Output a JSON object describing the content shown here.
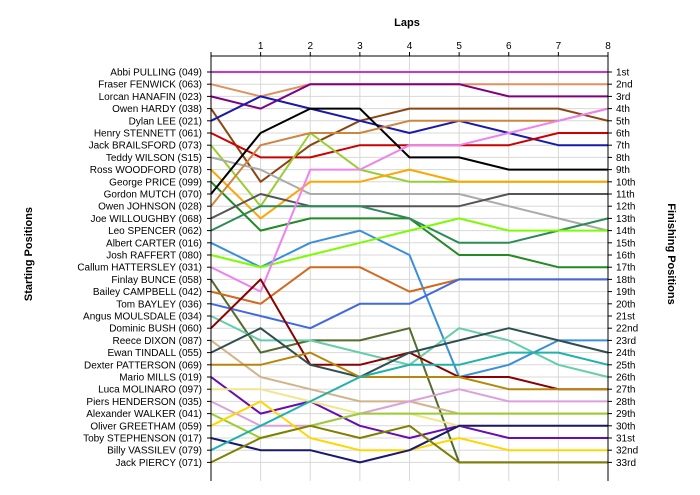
{
  "chart_data": {
    "type": "line",
    "title": "Laps",
    "ylabel_left": "Starting Positions",
    "ylabel_right": "Finishing Positions",
    "x_ticks": [
      "1",
      "2",
      "3",
      "4",
      "5",
      "6",
      "7",
      "8"
    ],
    "position_labels": [
      "1st",
      "2nd",
      "3rd",
      "4th",
      "5th",
      "6th",
      "7th",
      "8th",
      "9th",
      "10th",
      "11th",
      "12th",
      "13th",
      "14th",
      "15th",
      "16th",
      "17th",
      "18th",
      "19th",
      "20th",
      "21st",
      "22nd",
      "23rd",
      "24th",
      "25th",
      "26th",
      "27th",
      "28th",
      "29th",
      "30th",
      "31st",
      "32nd",
      "33rd"
    ],
    "ylim": [
      1,
      33
    ],
    "grid": true,
    "series": [
      {
        "name": "Abbi PULLING (049)",
        "color": "#cc33cc",
        "positions": [
          1,
          1,
          1,
          1,
          1,
          1,
          1,
          1,
          1
        ]
      },
      {
        "name": "Fraser FENWICK (063)",
        "color": "#e09060",
        "positions": [
          2,
          3,
          2,
          2,
          2,
          2,
          2,
          2,
          2
        ]
      },
      {
        "name": "Lorcan HANAFIN (023)",
        "color": "#800080",
        "positions": [
          3,
          4,
          2,
          2,
          2,
          2,
          3,
          3,
          3
        ]
      },
      {
        "name": "Owen HARDY (038)",
        "color": "#8b4513",
        "positions": [
          4,
          10,
          7,
          5,
          4,
          4,
          4,
          4,
          5
        ]
      },
      {
        "name": "Dylan LEE (021)",
        "color": "#1a1aaa",
        "positions": [
          5,
          3,
          4,
          5,
          6,
          5,
          6,
          7,
          7
        ]
      },
      {
        "name": "Henry STENNETT (061)",
        "color": "#cc0000",
        "positions": [
          6,
          8,
          8,
          7,
          7,
          7,
          7,
          6,
          6
        ]
      },
      {
        "name": "Jack BRAILSFORD (073)",
        "color": "#9acd32",
        "positions": [
          7,
          12,
          6,
          9,
          10,
          10,
          10,
          10,
          10
        ]
      },
      {
        "name": "Teddy WILSON (S15)",
        "color": "#aaaaaa",
        "positions": [
          8,
          9,
          11,
          11,
          11,
          11,
          12,
          13,
          14
        ]
      },
      {
        "name": "Ross WOODFORD (078)",
        "color": "#ffa500",
        "positions": [
          9,
          13,
          10,
          10,
          9,
          10,
          10,
          10,
          10
        ]
      },
      {
        "name": "George PRICE (099)",
        "color": "#228b22",
        "positions": [
          10,
          14,
          13,
          13,
          13,
          16,
          16,
          17,
          17
        ]
      },
      {
        "name": "Gordon MUTCH (070)",
        "color": "#000000",
        "positions": [
          11,
          6,
          4,
          4,
          8,
          8,
          9,
          9,
          9
        ]
      },
      {
        "name": "Owen JOHNSON (028)",
        "color": "#cd853f",
        "positions": [
          12,
          7,
          6,
          6,
          5,
          5,
          5,
          5,
          4
        ]
      },
      {
        "name": "Joe WILLOUGHBY (068)",
        "color": "#555555",
        "positions": [
          13,
          11,
          12,
          12,
          12,
          12,
          11,
          11,
          11
        ]
      },
      {
        "name": "Leo SPENCER (062)",
        "color": "#2e8b57",
        "positions": [
          14,
          12,
          12,
          12,
          13,
          15,
          15,
          14,
          13
        ]
      },
      {
        "name": "Albert CARTER (016)",
        "color": "#3a8fd9",
        "positions": [
          15,
          17,
          15,
          14,
          16,
          26,
          25,
          23,
          23
        ]
      },
      {
        "name": "Josh RAFFERT (080)",
        "color": "#7cfc00",
        "positions": [
          16,
          17,
          16,
          15,
          14,
          13,
          14,
          14,
          14
        ]
      },
      {
        "name": "Callum HATTERSLEY (031)",
        "color": "#ee82ee",
        "positions": [
          17,
          19,
          9,
          9,
          7,
          7,
          6,
          5,
          4
        ]
      },
      {
        "name": "Finlay BUNCE (058)",
        "color": "#556b2f",
        "positions": [
          18,
          24,
          23,
          23,
          22,
          33,
          33,
          33,
          33
        ]
      },
      {
        "name": "Bailey CAMPBELL (042)",
        "color": "#d2691e",
        "positions": [
          19,
          20,
          17,
          17,
          19,
          18,
          18,
          18,
          18
        ]
      },
      {
        "name": "Tom BAYLEY (036)",
        "color": "#4169e1",
        "positions": [
          20,
          21,
          22,
          20,
          20,
          18,
          18,
          18,
          18
        ]
      },
      {
        "name": "Angus MOULSDALE (034)",
        "color": "#66cdaa",
        "positions": [
          21,
          23,
          23,
          24,
          25,
          22,
          23,
          25,
          26
        ]
      },
      {
        "name": "Dominic BUSH (060)",
        "color": "#8b0000",
        "positions": [
          22,
          18,
          25,
          25,
          24,
          26,
          26,
          27,
          27
        ]
      },
      {
        "name": "Reece DIXON (087)",
        "color": "#d2b48c",
        "positions": [
          23,
          26,
          27,
          28,
          28,
          29,
          29,
          29,
          29
        ]
      },
      {
        "name": "Ewan TINDALL (055)",
        "color": "#2f4f4f",
        "positions": [
          24,
          22,
          25,
          26,
          24,
          23,
          22,
          23,
          24
        ]
      },
      {
        "name": "Dexter PATTERSON (069)",
        "color": "#b8860b",
        "positions": [
          25,
          25,
          24,
          26,
          26,
          26,
          27,
          27,
          27
        ]
      },
      {
        "name": "Mario MILLS (019)",
        "color": "#6a0dad",
        "positions": [
          26,
          29,
          28,
          30,
          31,
          30,
          31,
          31,
          31
        ]
      },
      {
        "name": "Luca MOLINARO (097)",
        "color": "#f0e68c",
        "positions": [
          27,
          27,
          28,
          29,
          29,
          30,
          30,
          30,
          30
        ]
      },
      {
        "name": "Piers HENDERSON (035)",
        "color": "#dda0dd",
        "positions": [
          28,
          30,
          30,
          29,
          28,
          27,
          28,
          28,
          28
        ]
      },
      {
        "name": "Alexander WALKER (041)",
        "color": "#9acd32",
        "positions": [
          29,
          31,
          30,
          29,
          29,
          29,
          29,
          29,
          29
        ]
      },
      {
        "name": "Oliver GREETHAM (059)",
        "color": "#ffd700",
        "positions": [
          30,
          28,
          31,
          32,
          32,
          31,
          32,
          32,
          32
        ]
      },
      {
        "name": "Toby STEPHENSON (017)",
        "color": "#191970",
        "positions": [
          31,
          32,
          32,
          33,
          32,
          30,
          30,
          30,
          30
        ]
      },
      {
        "name": "Billy VASSILEV (079)",
        "color": "#20b2aa",
        "positions": [
          32,
          30,
          28,
          26,
          25,
          25,
          24,
          24,
          25
        ]
      },
      {
        "name": "Jack PIERCY (071)",
        "color": "#808000",
        "positions": [
          33,
          31,
          30,
          31,
          30,
          33,
          33,
          33,
          33
        ]
      }
    ]
  }
}
